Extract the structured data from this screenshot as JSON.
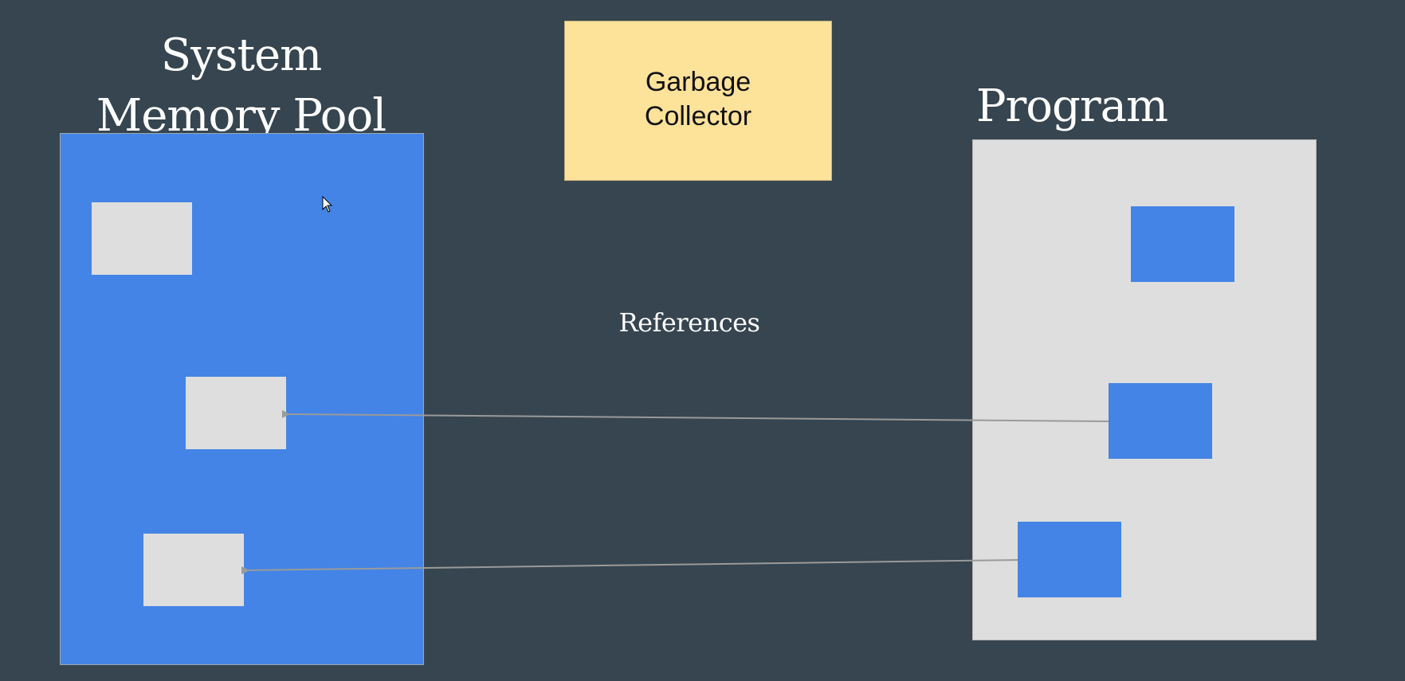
{
  "diagram": {
    "memory_pool_title": "System\nMemory Pool",
    "program_title": "Program",
    "garbage_collector_label": "Garbage\nCollector",
    "references_label": "References"
  },
  "colors": {
    "background": "#36454f",
    "memory_pool": "#4484e6",
    "program_panel": "#dedede",
    "garbage_collector": "#fde29a",
    "arrow": "#9a9a9a"
  },
  "icons": {
    "cursor": "mouse-pointer-icon"
  }
}
